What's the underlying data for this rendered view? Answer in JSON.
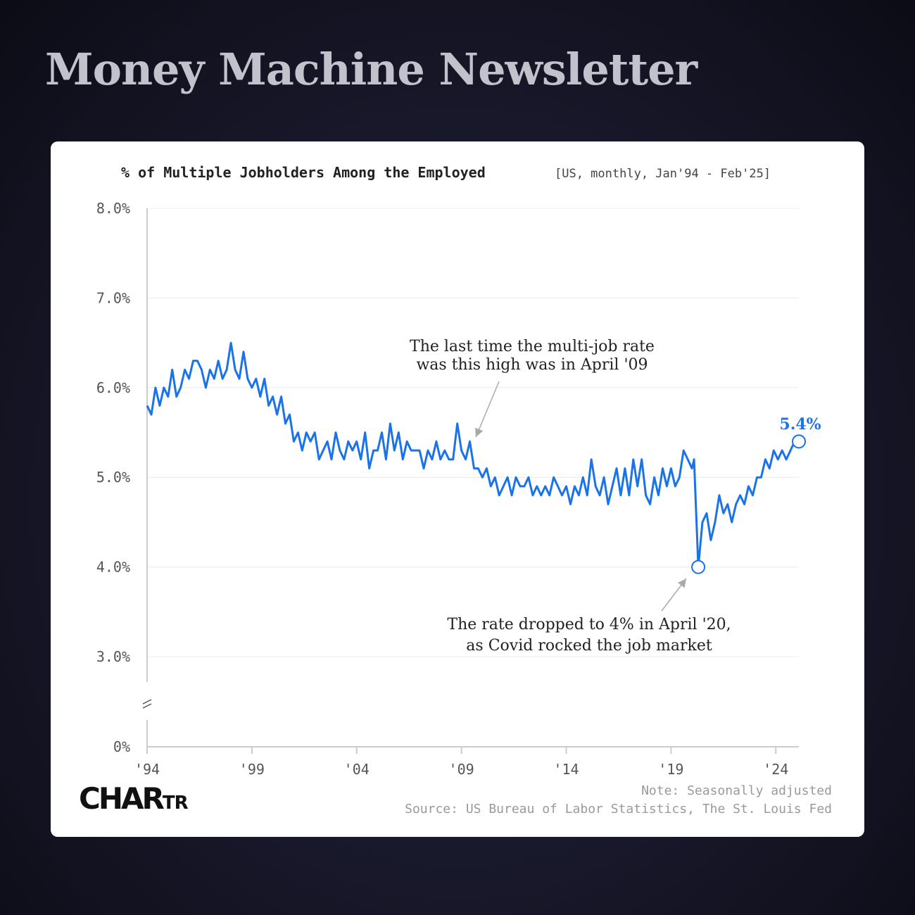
{
  "header": {
    "title": "Money Machine Newsletter"
  },
  "brand": {
    "logo_main": "CHAR",
    "logo_small": "TR"
  },
  "footer": {
    "note": "Note: Seasonally adjusted",
    "source": "Source: US Bureau of Labor Statistics, The St. Louis Fed"
  },
  "colors": {
    "line": "#1a73e8",
    "gridline": "#ececec",
    "axis": "#cccccc",
    "text": "#222222"
  },
  "chart_data": {
    "type": "line",
    "title": "% of Multiple Jobholders Among the Employed",
    "subtitle": "[US, monthly, Jan'94 - Feb'25]",
    "xlabel": "",
    "ylabel": "",
    "y_ticks": [
      "8.0%",
      "7.0%",
      "6.0%",
      "5.0%",
      "4.0%",
      "3.0%",
      "0%"
    ],
    "y_tick_values": [
      8,
      7,
      6,
      5,
      4,
      3,
      0
    ],
    "y_axis_break": true,
    "ylim": [
      3,
      8
    ],
    "x_ticks": [
      "'94",
      "'99",
      "'04",
      "'09",
      "'14",
      "'19",
      "'24"
    ],
    "x_tick_values": [
      1994,
      1999,
      2004,
      2009,
      2014,
      2019,
      2024
    ],
    "xlim": [
      1994,
      2025.1
    ],
    "grid": true,
    "series": [
      {
        "values": [
          [
            1994.0,
            5.8
          ],
          [
            1994.2,
            5.7
          ],
          [
            1994.4,
            6.0
          ],
          [
            1994.6,
            5.8
          ],
          [
            1994.8,
            6.0
          ],
          [
            1995.0,
            5.9
          ],
          [
            1995.2,
            6.2
          ],
          [
            1995.4,
            5.9
          ],
          [
            1995.6,
            6.0
          ],
          [
            1995.8,
            6.2
          ],
          [
            1996.0,
            6.1
          ],
          [
            1996.2,
            6.3
          ],
          [
            1996.4,
            6.3
          ],
          [
            1996.6,
            6.2
          ],
          [
            1996.8,
            6.0
          ],
          [
            1997.0,
            6.2
          ],
          [
            1997.2,
            6.1
          ],
          [
            1997.4,
            6.3
          ],
          [
            1997.6,
            6.1
          ],
          [
            1997.8,
            6.2
          ],
          [
            1998.0,
            6.5
          ],
          [
            1998.2,
            6.2
          ],
          [
            1998.4,
            6.1
          ],
          [
            1998.6,
            6.4
          ],
          [
            1998.8,
            6.1
          ],
          [
            1999.0,
            6.0
          ],
          [
            1999.2,
            6.1
          ],
          [
            1999.4,
            5.9
          ],
          [
            1999.6,
            6.1
          ],
          [
            1999.8,
            5.8
          ],
          [
            2000.0,
            5.9
          ],
          [
            2000.2,
            5.7
          ],
          [
            2000.4,
            5.9
          ],
          [
            2000.6,
            5.6
          ],
          [
            2000.8,
            5.7
          ],
          [
            2001.0,
            5.4
          ],
          [
            2001.2,
            5.5
          ],
          [
            2001.4,
            5.3
          ],
          [
            2001.6,
            5.5
          ],
          [
            2001.8,
            5.4
          ],
          [
            2002.0,
            5.5
          ],
          [
            2002.2,
            5.2
          ],
          [
            2002.4,
            5.3
          ],
          [
            2002.6,
            5.4
          ],
          [
            2002.8,
            5.2
          ],
          [
            2003.0,
            5.5
          ],
          [
            2003.2,
            5.3
          ],
          [
            2003.4,
            5.2
          ],
          [
            2003.6,
            5.4
          ],
          [
            2003.8,
            5.3
          ],
          [
            2004.0,
            5.4
          ],
          [
            2004.2,
            5.2
          ],
          [
            2004.4,
            5.5
          ],
          [
            2004.6,
            5.1
          ],
          [
            2004.8,
            5.3
          ],
          [
            2005.0,
            5.3
          ],
          [
            2005.2,
            5.5
          ],
          [
            2005.4,
            5.2
          ],
          [
            2005.6,
            5.6
          ],
          [
            2005.8,
            5.3
          ],
          [
            2006.0,
            5.5
          ],
          [
            2006.2,
            5.2
          ],
          [
            2006.4,
            5.4
          ],
          [
            2006.6,
            5.3
          ],
          [
            2006.8,
            5.3
          ],
          [
            2007.0,
            5.3
          ],
          [
            2007.2,
            5.1
          ],
          [
            2007.4,
            5.3
          ],
          [
            2007.6,
            5.2
          ],
          [
            2007.8,
            5.4
          ],
          [
            2008.0,
            5.2
          ],
          [
            2008.2,
            5.3
          ],
          [
            2008.4,
            5.2
          ],
          [
            2008.6,
            5.2
          ],
          [
            2008.8,
            5.6
          ],
          [
            2009.0,
            5.3
          ],
          [
            2009.2,
            5.2
          ],
          [
            2009.4,
            5.4
          ],
          [
            2009.6,
            5.1
          ],
          [
            2009.8,
            5.1
          ],
          [
            2010.0,
            5.0
          ],
          [
            2010.2,
            5.1
          ],
          [
            2010.4,
            4.9
          ],
          [
            2010.6,
            5.0
          ],
          [
            2010.8,
            4.8
          ],
          [
            2011.0,
            4.9
          ],
          [
            2011.2,
            5.0
          ],
          [
            2011.4,
            4.8
          ],
          [
            2011.6,
            5.0
          ],
          [
            2011.8,
            4.9
          ],
          [
            2012.0,
            4.9
          ],
          [
            2012.2,
            5.0
          ],
          [
            2012.4,
            4.8
          ],
          [
            2012.6,
            4.9
          ],
          [
            2012.8,
            4.8
          ],
          [
            2013.0,
            4.9
          ],
          [
            2013.2,
            4.8
          ],
          [
            2013.4,
            5.0
          ],
          [
            2013.6,
            4.9
          ],
          [
            2013.8,
            4.8
          ],
          [
            2014.0,
            4.9
          ],
          [
            2014.2,
            4.7
          ],
          [
            2014.4,
            4.9
          ],
          [
            2014.6,
            4.8
          ],
          [
            2014.8,
            5.0
          ],
          [
            2015.0,
            4.8
          ],
          [
            2015.2,
            5.2
          ],
          [
            2015.4,
            4.9
          ],
          [
            2015.6,
            4.8
          ],
          [
            2015.8,
            5.0
          ],
          [
            2016.0,
            4.7
          ],
          [
            2016.2,
            4.9
          ],
          [
            2016.4,
            5.1
          ],
          [
            2016.6,
            4.8
          ],
          [
            2016.8,
            5.1
          ],
          [
            2017.0,
            4.8
          ],
          [
            2017.2,
            5.2
          ],
          [
            2017.4,
            4.9
          ],
          [
            2017.6,
            5.2
          ],
          [
            2017.8,
            4.8
          ],
          [
            2018.0,
            4.7
          ],
          [
            2018.2,
            5.0
          ],
          [
            2018.4,
            4.8
          ],
          [
            2018.6,
            5.1
          ],
          [
            2018.8,
            4.9
          ],
          [
            2019.0,
            5.1
          ],
          [
            2019.2,
            4.9
          ],
          [
            2019.4,
            5.0
          ],
          [
            2019.6,
            5.3
          ],
          [
            2019.8,
            5.2
          ],
          [
            2020.0,
            5.1
          ],
          [
            2020.1,
            5.2
          ],
          [
            2020.3,
            4.0
          ],
          [
            2020.5,
            4.5
          ],
          [
            2020.7,
            4.6
          ],
          [
            2020.9,
            4.3
          ],
          [
            2021.1,
            4.5
          ],
          [
            2021.3,
            4.8
          ],
          [
            2021.5,
            4.6
          ],
          [
            2021.7,
            4.7
          ],
          [
            2021.9,
            4.5
          ],
          [
            2022.1,
            4.7
          ],
          [
            2022.3,
            4.8
          ],
          [
            2022.5,
            4.7
          ],
          [
            2022.7,
            4.9
          ],
          [
            2022.9,
            4.8
          ],
          [
            2023.1,
            5.0
          ],
          [
            2023.3,
            5.0
          ],
          [
            2023.5,
            5.2
          ],
          [
            2023.7,
            5.1
          ],
          [
            2023.9,
            5.3
          ],
          [
            2024.1,
            5.2
          ],
          [
            2024.3,
            5.3
          ],
          [
            2024.5,
            5.2
          ],
          [
            2024.7,
            5.3
          ],
          [
            2024.9,
            5.4
          ],
          [
            2025.1,
            5.4
          ]
        ]
      }
    ],
    "highlights": [
      {
        "x": 2020.3,
        "y": 4.0
      },
      {
        "x": 2025.1,
        "y": 5.4,
        "label": "5.4%"
      }
    ],
    "annotations": [
      {
        "lines": [
          "The last time the multi-job rate",
          "was this high was in April '09"
        ],
        "target": [
          2009.3,
          5.4
        ]
      },
      {
        "lines": [
          "The rate dropped to 4% in April '20,",
          "as Covid rocked the job market"
        ],
        "target": [
          2020.3,
          4.0
        ]
      }
    ]
  }
}
